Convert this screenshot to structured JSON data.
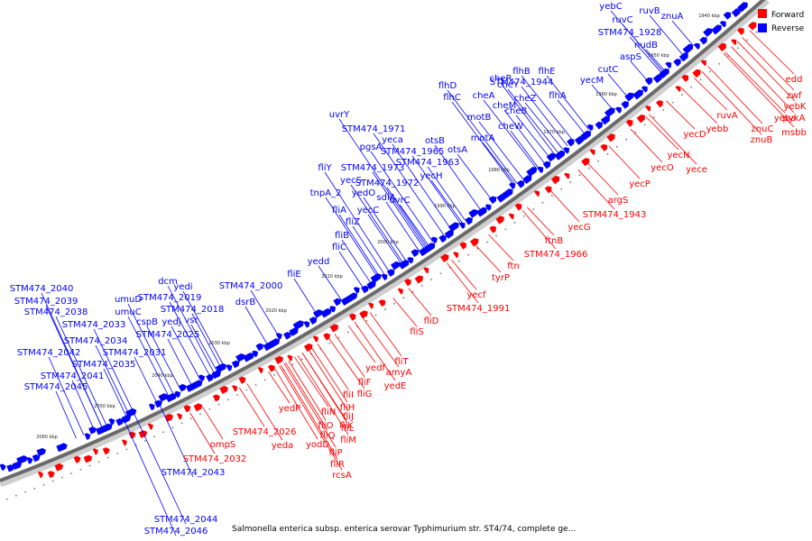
{
  "colors": {
    "forward": "#ff0000",
    "reverse": "#0000ff",
    "backbone": "#6a6a6a",
    "backbone_light": "#c8c8c8"
  },
  "legend": {
    "forward": "Forward",
    "reverse": "Reverse"
  },
  "caption": "Salmonella enterica subsp. enterica serovar Typhimurium str. ST4/74, complete ge...",
  "ticks": [
    "1940 kbp",
    "1950 kbp",
    "1960 kbp",
    "1970 kbp",
    "1980 kbp",
    "1990 kbp",
    "2000 kbp",
    "2010 kbp",
    "2020 kbp",
    "2030 kbp",
    "2040 kbp",
    "2050 kbp",
    "2060 kbp"
  ],
  "reverse_labels": [
    "yebC",
    "ruvB",
    "znuA",
    "ruvC",
    "STM474_1928",
    "nudB",
    "aspS",
    "cutC",
    "yecM",
    "cheY",
    "flhB",
    "flhE",
    "cheR",
    "STM474_1944",
    "cheZ",
    "flhA",
    "cheB",
    "flhD",
    "flhC",
    "cheA",
    "cheM",
    "motB",
    "cheW",
    "motA",
    "uvrY",
    "STM474_1971",
    "otsB",
    "otsA",
    "pgsA",
    "yeca",
    "STM474_1965",
    "STM474_1963",
    "fliY",
    "STM474_1973",
    "yecH",
    "yecS",
    "STM474_1972",
    "tnpA_2",
    "yedO",
    "sdiA",
    "uvrC",
    "fliA",
    "yecC",
    "fliZ",
    "fliB",
    "fliC",
    "yedd",
    "fliE",
    "STM474_2000",
    "dsrB",
    "dcm",
    "yedi",
    "STM474_2019",
    "umuD",
    "STM474_2018",
    "umuC",
    "cspB",
    "yedj",
    "vsr",
    "STM474_2025",
    "STM474_2040",
    "STM474_2039",
    "STM474_2038",
    "STM474_2033",
    "STM474_2034",
    "STM474_2031",
    "STM474_2042",
    "STM474_2035",
    "STM474_2041",
    "STM474_2045",
    "STM474_2043",
    "STM474_2044",
    "STM474_2046"
  ],
  "forward_labels": [
    "edd",
    "zwf",
    "yebK",
    "yeba",
    "pykA",
    "ruvA",
    "znuC",
    "msbb",
    "yebb",
    "znuB",
    "yecD",
    "yecN",
    "yece",
    "yecO",
    "yecP",
    "argS",
    "STM474_1943",
    "yecG",
    "ftnB",
    "STM474_1966",
    "ftn",
    "tyrP",
    "yecf",
    "STM474_1991",
    "fliD",
    "fliS",
    "fliT",
    "amyA",
    "yedf",
    "yedE",
    "fliF",
    "fliG",
    "fliI",
    "fliH",
    "fliJ",
    "fliK",
    "fliN",
    "fliL",
    "yedP",
    "fliO",
    "fliQ",
    "fliM",
    "yodD",
    "fliP",
    "fliR",
    "rcsA",
    "STM474_2026",
    "yeda",
    "ompS",
    "STM474_2032"
  ]
}
